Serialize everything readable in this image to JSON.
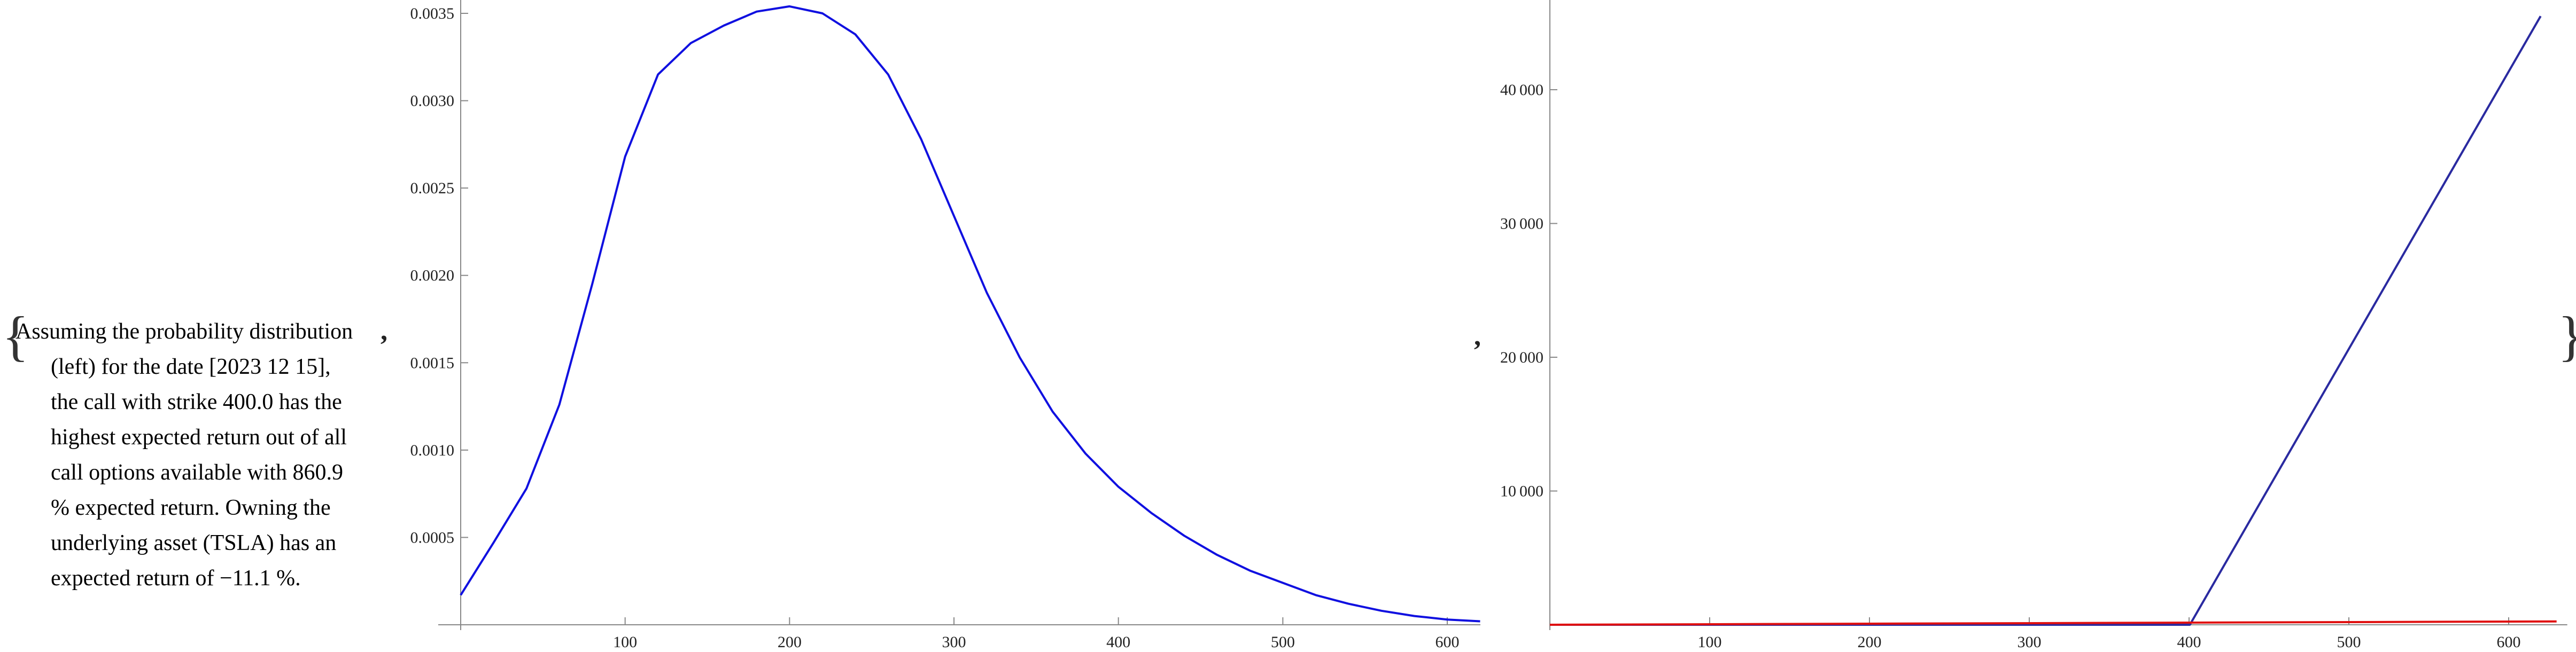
{
  "open_brace": "{",
  "close_brace": "}",
  "separator": ",",
  "caption": {
    "lines": [
      "Assuming the probability distribution",
      "(left) for the date [2023 12 15],",
      "the call with strike 400.0 has the",
      "highest expected return out of all",
      "call options available with 860.9",
      "% expected return. Owning the",
      "underlying asset (TSLA) has an",
      "expected return of −11.1 %."
    ]
  },
  "chart_data": [
    {
      "type": "line",
      "title": "",
      "xlabel": "",
      "ylabel": "",
      "xlim": [
        0,
        630
      ],
      "ylim": [
        0,
        0.0036
      ],
      "x_ticks": [
        100,
        200,
        300,
        400,
        500,
        600
      ],
      "x_tick_labels": [
        "100",
        "200",
        "300",
        "400",
        "500",
        "600"
      ],
      "y_ticks": [
        0.0005,
        0.001,
        0.0015,
        0.002,
        0.0025,
        0.003,
        0.0035
      ],
      "y_tick_labels": [
        "0.0005",
        "0.0010",
        "0.0015",
        "0.0020",
        "0.0025",
        "0.0030",
        "0.0035"
      ],
      "grid": false,
      "series": [
        {
          "color": "#1010e0",
          "x": [
            0,
            20,
            40,
            60,
            80,
            100,
            120,
            140,
            160,
            180,
            200,
            220,
            240,
            260,
            280,
            300,
            320,
            340,
            360,
            380,
            400,
            420,
            440,
            460,
            480,
            500,
            520,
            540,
            560,
            580,
            600,
            620
          ],
          "y": [
            0.00017,
            0.00047,
            0.00078,
            0.00126,
            0.00195,
            0.00268,
            0.00315,
            0.00333,
            0.00343,
            0.00351,
            0.00354,
            0.0035,
            0.00338,
            0.00315,
            0.00278,
            0.00234,
            0.0019,
            0.00153,
            0.00122,
            0.00098,
            0.00079,
            0.00064,
            0.00051,
            0.0004,
            0.00031,
            0.00024,
            0.00017,
            0.00012,
            8e-05,
            5e-05,
            3e-05,
            2e-05
          ]
        }
      ]
    },
    {
      "type": "line",
      "title": "",
      "xlabel": "",
      "ylabel": "",
      "xlim": [
        0,
        630
      ],
      "ylim": [
        0,
        46000
      ],
      "x_ticks": [
        100,
        200,
        300,
        400,
        500,
        600
      ],
      "x_tick_labels": [
        "100",
        "200",
        "300",
        "400",
        "500",
        "600"
      ],
      "y_ticks": [
        10000,
        20000,
        30000,
        40000
      ],
      "y_tick_labels": [
        "10 000",
        "20 000",
        "30 000",
        "40 000"
      ],
      "grid": false,
      "series": [
        {
          "color": "#2a2aa0",
          "x": [
            0,
            400,
            400.5,
            620
          ],
          "y": [
            0,
            0,
            0,
            45500
          ]
        },
        {
          "color": "#e01010",
          "x": [
            0,
            630
          ],
          "y": [
            0,
            250
          ]
        }
      ]
    }
  ]
}
